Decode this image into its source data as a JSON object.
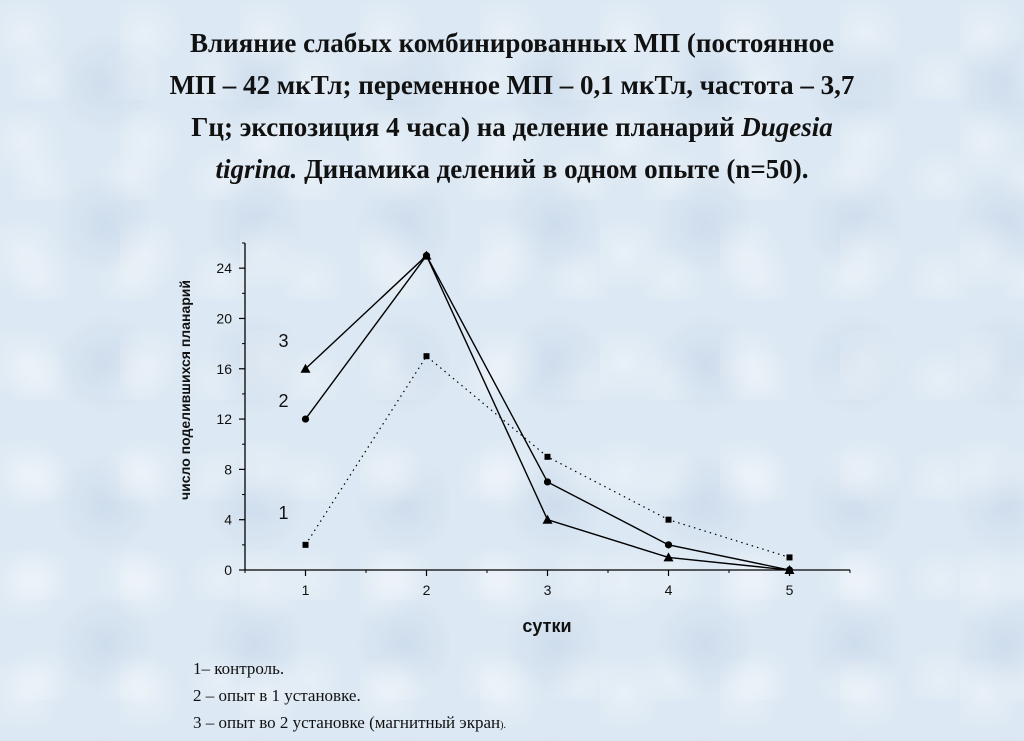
{
  "title": {
    "line1": "Влияние слабых комбинированных МП (постоянное",
    "line2": "МП – 42 мкТл; переменное МП – 0,1 мкТл, частота – 3,7",
    "line3_pre": "Гц; экспозиция 4 часа) на деление планарий",
    "line3_italic": "Dugesia",
    "line4_italic": "tigrina.",
    "line4_post": "Динамика делений в одном опыте (n=50)."
  },
  "chart_data": {
    "type": "line",
    "xlabel": "сутки",
    "ylabel": "число поделившихся планарий",
    "x": [
      1,
      2,
      3,
      4,
      5
    ],
    "xlim": [
      0.5,
      5.5
    ],
    "ylim": [
      0,
      26
    ],
    "yticks": [
      0,
      4,
      8,
      12,
      16,
      20,
      24
    ],
    "xticks": [
      1,
      2,
      3,
      4,
      5
    ],
    "grid": false,
    "series": [
      {
        "name": "1",
        "values": [
          2,
          17,
          9,
          4,
          1
        ],
        "marker": "square",
        "style": "dotted"
      },
      {
        "name": "2",
        "values": [
          12,
          25,
          7,
          2,
          0
        ],
        "marker": "circle",
        "style": "solid"
      },
      {
        "name": "3",
        "values": [
          16,
          25,
          4,
          1,
          0
        ],
        "marker": "triangle",
        "style": "solid"
      }
    ]
  },
  "legend": {
    "item1": "1– контроль.",
    "item2": "2 – опыт в 1 установке.",
    "item3": "3 – опыт во 2 установке (магнитный экран",
    "item3_tail": ")."
  }
}
